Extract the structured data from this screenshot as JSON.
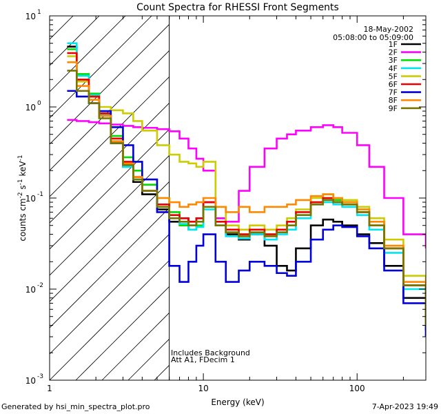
{
  "chart_data": {
    "type": "line",
    "scale": "log-log",
    "title": "Count Spectra for RHESSI Front Segments",
    "xlabel": "Energy (keV)",
    "ylabel_parts": {
      "pre": "counts cm",
      "sup1": "-2",
      "mid1": " s",
      "sup2": "-1",
      "mid2": " keV",
      "sup3": "-1"
    },
    "xlim": [
      1,
      280
    ],
    "ylim": [
      0.001,
      10
    ],
    "x_ticks": [
      {
        "v": 1,
        "label": "1"
      },
      {
        "v": 10,
        "label": "10"
      },
      {
        "v": 100,
        "label": "100"
      }
    ],
    "y_ticks": [
      {
        "v": 0.001,
        "base": "10",
        "exp": "-3"
      },
      {
        "v": 0.01,
        "base": "10",
        "exp": "-2"
      },
      {
        "v": 0.1,
        "base": "10",
        "exp": "-1"
      },
      {
        "v": 1,
        "base": "10",
        "exp": "0"
      },
      {
        "v": 10,
        "base": "10",
        "exp": "1"
      }
    ],
    "hatch_region_keV": [
      1,
      6
    ],
    "annotation_date": "18-May-2002",
    "annotation_time": "05:08:00 to 05:09:00",
    "notes": [
      "Includes Background",
      "Att A1, FDecim 1"
    ],
    "series": [
      {
        "name": "1F",
        "color": "#000000",
        "x": [
          1.3,
          1.5,
          1.8,
          2.1,
          2.5,
          3,
          3.5,
          4,
          5,
          6,
          7,
          8,
          9,
          10,
          12,
          14,
          17,
          20,
          25,
          30,
          35,
          40,
          50,
          60,
          70,
          80,
          100,
          120,
          150,
          200,
          280
        ],
        "y": [
          4.6,
          2,
          1.3,
          0.8,
          0.4,
          0.22,
          0.15,
          0.11,
          0.075,
          0.055,
          0.06,
          0.05,
          0.06,
          0.09,
          0.06,
          0.04,
          0.035,
          0.04,
          0.03,
          0.018,
          0.016,
          0.028,
          0.05,
          0.058,
          0.055,
          0.05,
          0.04,
          0.032,
          0.018,
          0.008,
          0.0035
        ]
      },
      {
        "name": "2F",
        "color": "#ff00ff",
        "x": [
          1.3,
          1.5,
          1.8,
          2.1,
          2.5,
          3,
          3.5,
          4,
          5,
          6,
          7,
          8,
          9,
          10,
          12,
          14,
          17,
          20,
          25,
          30,
          35,
          40,
          50,
          60,
          70,
          80,
          100,
          120,
          150,
          200,
          280
        ],
        "y": [
          0.72,
          0.7,
          0.68,
          0.66,
          0.64,
          0.62,
          0.6,
          0.59,
          0.57,
          0.54,
          0.45,
          0.35,
          0.27,
          0.2,
          0.06,
          0.055,
          0.12,
          0.22,
          0.35,
          0.45,
          0.5,
          0.55,
          0.6,
          0.63,
          0.6,
          0.52,
          0.38,
          0.22,
          0.1,
          0.04,
          0.028
        ]
      },
      {
        "name": "3F",
        "color": "#00dd00",
        "x": [
          1.3,
          1.5,
          1.8,
          2.1,
          2.5,
          3,
          3.5,
          4,
          5,
          6,
          7,
          8,
          9,
          10,
          12,
          14,
          17,
          20,
          25,
          30,
          35,
          40,
          50,
          60,
          70,
          80,
          100,
          120,
          150,
          200,
          280
        ],
        "y": [
          4.3,
          2.3,
          1.4,
          0.9,
          0.48,
          0.28,
          0.2,
          0.14,
          0.1,
          0.07,
          0.05,
          0.045,
          0.05,
          0.08,
          0.05,
          0.042,
          0.04,
          0.045,
          0.04,
          0.045,
          0.05,
          0.065,
          0.09,
          0.1,
          0.095,
          0.09,
          0.075,
          0.05,
          0.028,
          0.011,
          0.004
        ]
      },
      {
        "name": "4F",
        "color": "#00e5ee",
        "x": [
          1.3,
          1.5,
          1.8,
          2.1,
          2.5,
          3,
          3.5,
          4,
          5,
          6,
          7,
          8,
          9,
          10,
          12,
          14,
          17,
          20,
          25,
          30,
          35,
          40,
          50,
          60,
          70,
          80,
          100,
          120,
          150,
          200,
          280
        ],
        "y": [
          5.0,
          2.2,
          1.35,
          0.82,
          0.42,
          0.22,
          0.16,
          0.12,
          0.08,
          0.06,
          0.052,
          0.045,
          0.048,
          0.075,
          0.05,
          0.038,
          0.036,
          0.04,
          0.035,
          0.04,
          0.045,
          0.06,
          0.085,
          0.09,
          0.085,
          0.08,
          0.065,
          0.045,
          0.025,
          0.01,
          0.0038
        ]
      },
      {
        "name": "5F",
        "color": "#cccc00",
        "x": [
          1.3,
          1.5,
          1.8,
          2.1,
          2.5,
          3,
          3.5,
          4,
          5,
          6,
          7,
          8,
          9,
          10,
          12,
          14,
          17,
          20,
          25,
          30,
          35,
          40,
          50,
          60,
          70,
          80,
          100,
          120,
          150,
          200,
          280
        ],
        "y": [
          3.6,
          1.9,
          1.3,
          1.0,
          0.92,
          0.85,
          0.7,
          0.55,
          0.38,
          0.3,
          0.25,
          0.24,
          0.22,
          0.25,
          0.08,
          0.05,
          0.045,
          0.05,
          0.045,
          0.05,
          0.06,
          0.075,
          0.1,
          0.11,
          0.1,
          0.095,
          0.08,
          0.06,
          0.035,
          0.014,
          0.005
        ]
      },
      {
        "name": "6F",
        "color": "#ee0000",
        "x": [
          1.3,
          1.5,
          1.8,
          2.1,
          2.5,
          3,
          3.5,
          4,
          5,
          6,
          7,
          8,
          9,
          10,
          12,
          14,
          17,
          20,
          25,
          30,
          35,
          40,
          50,
          60,
          70,
          80,
          100,
          120,
          150,
          200,
          280
        ],
        "y": [
          3.9,
          2.0,
          1.3,
          0.85,
          0.45,
          0.25,
          0.17,
          0.12,
          0.085,
          0.065,
          0.06,
          0.055,
          0.06,
          0.09,
          0.055,
          0.045,
          0.04,
          0.045,
          0.04,
          0.045,
          0.055,
          0.07,
          0.09,
          0.1,
          0.09,
          0.085,
          0.07,
          0.05,
          0.028,
          0.011,
          0.004
        ]
      },
      {
        "name": "7F",
        "color": "#0000dd",
        "x": [
          1.3,
          1.5,
          1.8,
          2.1,
          2.5,
          3,
          3.5,
          4,
          5,
          6,
          7,
          8,
          9,
          10,
          12,
          14,
          17,
          20,
          25,
          30,
          35,
          40,
          50,
          60,
          70,
          80,
          100,
          120,
          150,
          200,
          280
        ],
        "y": [
          1.5,
          1.3,
          1.1,
          0.9,
          0.6,
          0.38,
          0.25,
          0.16,
          0.07,
          0.018,
          0.012,
          0.02,
          0.03,
          0.04,
          0.02,
          0.012,
          0.016,
          0.02,
          0.018,
          0.015,
          0.014,
          0.02,
          0.035,
          0.045,
          0.05,
          0.048,
          0.038,
          0.028,
          0.016,
          0.007,
          0.003
        ]
      },
      {
        "name": "8F",
        "color": "#ff8800",
        "x": [
          1.3,
          1.5,
          1.8,
          2.1,
          2.5,
          3,
          3.5,
          4,
          5,
          6,
          7,
          8,
          9,
          10,
          12,
          14,
          17,
          20,
          25,
          30,
          35,
          40,
          50,
          60,
          70,
          80,
          100,
          120,
          150,
          200,
          280
        ],
        "y": [
          3.1,
          1.7,
          1.2,
          0.8,
          0.42,
          0.24,
          0.17,
          0.12,
          0.1,
          0.09,
          0.08,
          0.085,
          0.09,
          0.1,
          0.08,
          0.07,
          0.08,
          0.07,
          0.08,
          0.08,
          0.085,
          0.095,
          0.105,
          0.11,
          0.1,
          0.09,
          0.075,
          0.055,
          0.03,
          0.012,
          0.004
        ]
      },
      {
        "name": "9F",
        "color": "#777700",
        "x": [
          1.3,
          1.5,
          1.8,
          2.1,
          2.5,
          3,
          3.5,
          4,
          5,
          6,
          7,
          8,
          9,
          10,
          12,
          14,
          17,
          20,
          25,
          30,
          35,
          40,
          50,
          60,
          70,
          80,
          100,
          120,
          150,
          200,
          280
        ],
        "y": [
          2.5,
          1.5,
          1.1,
          0.75,
          0.4,
          0.23,
          0.16,
          0.12,
          0.08,
          0.06,
          0.055,
          0.05,
          0.055,
          0.08,
          0.05,
          0.042,
          0.038,
          0.042,
          0.038,
          0.042,
          0.05,
          0.065,
          0.085,
          0.095,
          0.09,
          0.085,
          0.07,
          0.05,
          0.028,
          0.011,
          0.004
        ]
      }
    ]
  },
  "footer": {
    "generated_by": "Generated by hsi_min_spectra_plot.pro",
    "timestamp": "7-Apr-2023 19:49"
  }
}
